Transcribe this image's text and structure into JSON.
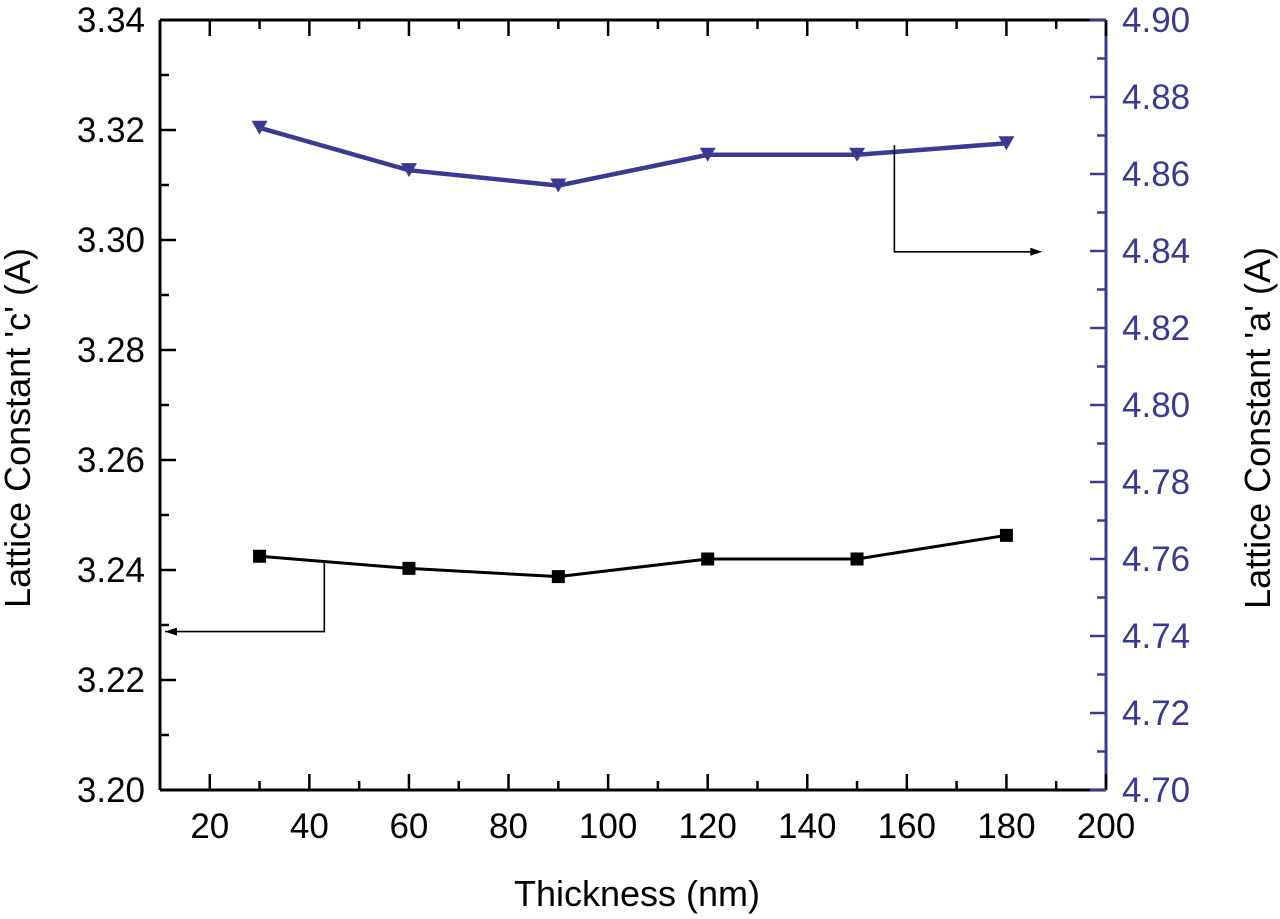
{
  "chart_data": {
    "type": "line",
    "xlabel": "Thickness (nm)",
    "ylabel_left": "Lattice Constant 'c' (A)",
    "ylabel_right": "Lattice Constant 'a' (A)",
    "xlim": [
      10,
      200
    ],
    "ylim_left": [
      3.2,
      3.34
    ],
    "ylim_right": [
      4.7,
      4.9
    ],
    "x_ticks": [
      "20",
      "40",
      "60",
      "80",
      "100",
      "120",
      "140",
      "160",
      "180",
      "200"
    ],
    "y_left_ticks": [
      "3.20",
      "3.22",
      "3.24",
      "3.26",
      "3.28",
      "3.30",
      "3.32",
      "3.34"
    ],
    "y_right_ticks": [
      "4.70",
      "4.72",
      "4.74",
      "4.76",
      "4.78",
      "4.80",
      "4.82",
      "4.84",
      "4.86",
      "4.88",
      "4.90"
    ],
    "x": [
      30,
      60,
      90,
      120,
      150,
      180
    ],
    "series": [
      {
        "axis": "left",
        "marker": "square",
        "color": "#000000",
        "values": [
          3.2425,
          3.2403,
          3.2388,
          3.242,
          3.242,
          3.2463
        ]
      },
      {
        "axis": "right",
        "marker": "triangle-down",
        "color": "#3a3a92",
        "values": [
          4.872,
          4.861,
          4.857,
          4.865,
          4.865,
          4.868
        ]
      }
    ],
    "annotations": [
      {
        "type": "arrow",
        "points_to": "left-axis",
        "series": 0
      },
      {
        "type": "arrow",
        "points_to": "right-axis",
        "series": 1
      }
    ],
    "grid": false,
    "colors": {
      "left_axis": "#000000",
      "right_axis": "#3a3a92"
    }
  }
}
